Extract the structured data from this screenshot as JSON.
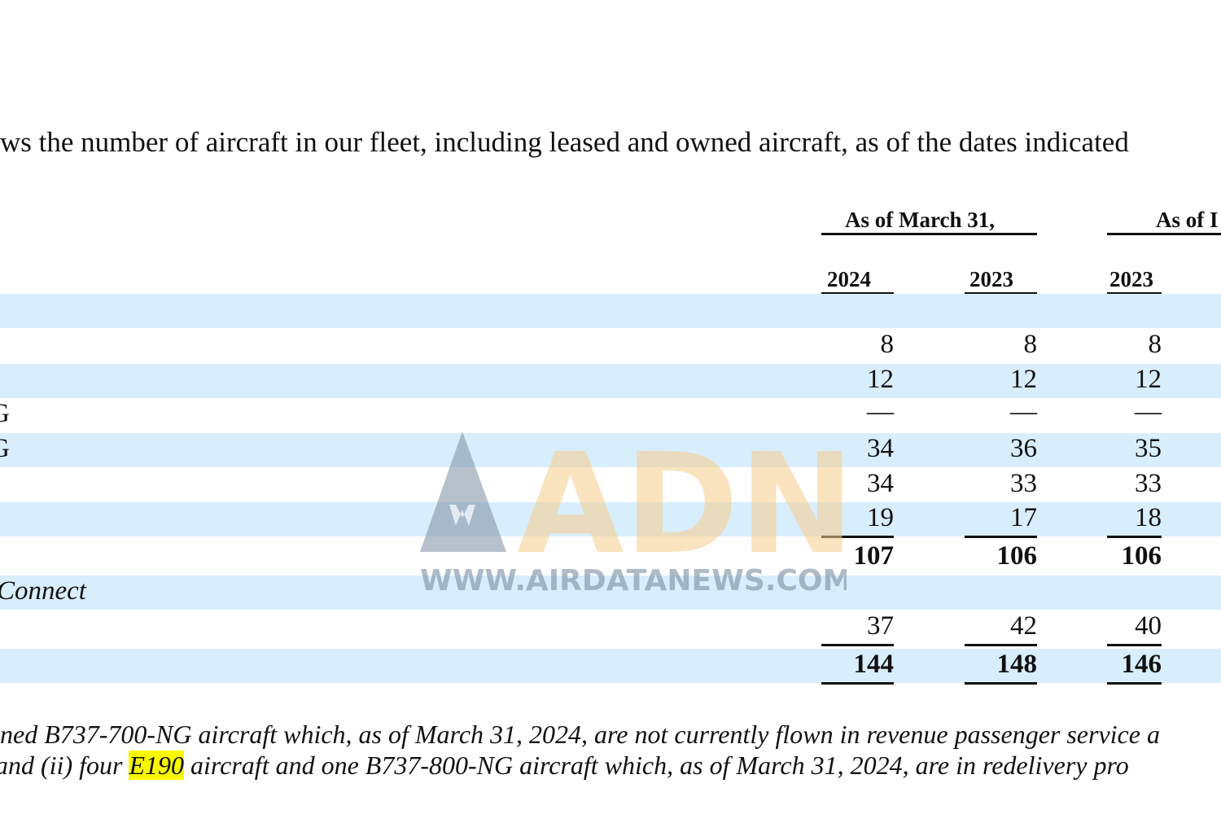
{
  "intro_text": "ws the number of aircraft in our fleet, including leased and owned aircraft, as of the dates indicated",
  "header": {
    "group1": "As of March 31,",
    "group2": "As of I",
    "years": [
      "2024",
      "2023",
      "2023"
    ]
  },
  "rows": [
    {
      "label": "",
      "values": [
        "",
        "",
        ""
      ]
    },
    {
      "label": "",
      "values": [
        "8",
        "8",
        "8"
      ]
    },
    {
      "label": "",
      "values": [
        "12",
        "12",
        "12"
      ]
    },
    {
      "label": "G",
      "values": [
        "—",
        "—",
        "—"
      ]
    },
    {
      "label": "G",
      "values": [
        "34",
        "36",
        "35"
      ]
    },
    {
      "label": "",
      "values": [
        "34",
        "33",
        "33"
      ]
    },
    {
      "label": "",
      "values": [
        "19",
        "17",
        "18"
      ]
    },
    {
      "label": "",
      "values": [
        "107",
        "106",
        "106"
      ]
    },
    {
      "label": "Connect",
      "values": [
        "",
        "",
        ""
      ]
    },
    {
      "label": "",
      "values": [
        "37",
        "42",
        "40"
      ]
    },
    {
      "label": "",
      "values": [
        "144",
        "148",
        "146"
      ]
    }
  ],
  "footnote": {
    "line1": "ned B737-700-NG aircraft which, as of March 31, 2024, are not currently flown in revenue passenger service a",
    "line2_prefix": "and (ii) four ",
    "line2_highlight": "E190",
    "line2_suffix": " aircraft and one B737-800-NG aircraft which, as of March 31, 2024, are in redelivery pro"
  },
  "watermark": {
    "logo_text": "ADN",
    "url_text": "WWW.AIRDATANEWS.COM"
  },
  "colors": {
    "band": "#d9eefc",
    "highlight": "#f8f800",
    "watermark_orange": "#f7cd8c",
    "watermark_gray": "#7b8ea3"
  }
}
